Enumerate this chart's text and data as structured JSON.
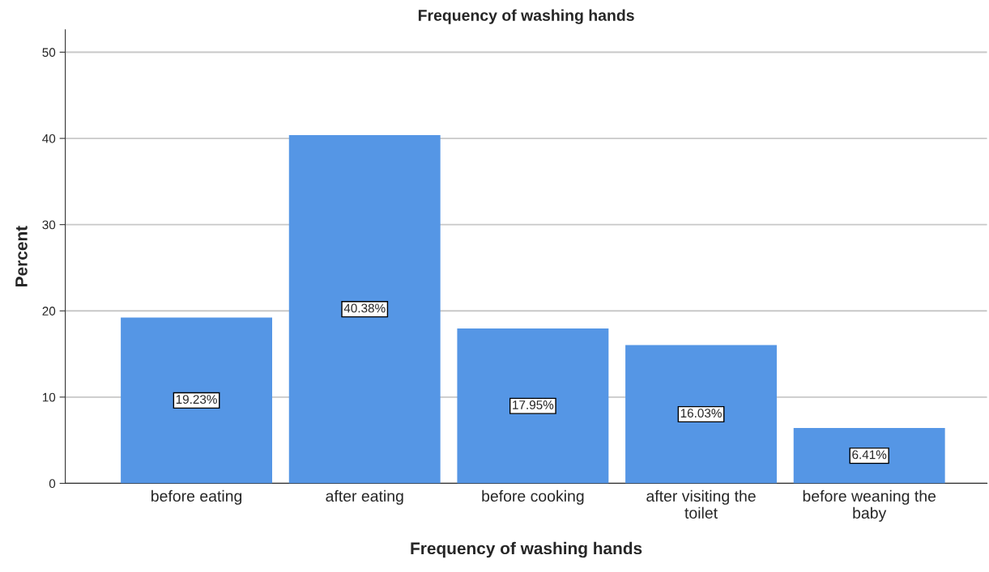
{
  "chart_data": {
    "type": "bar",
    "title": "Frequency of washing hands",
    "xlabel": "Frequency of washing hands",
    "ylabel": "Percent",
    "categories": [
      "before eating",
      "after eating",
      "before cooking",
      "after visiting the toilet",
      "before weaning the baby"
    ],
    "values": [
      19.23,
      40.38,
      17.95,
      16.03,
      6.41
    ],
    "value_labels": [
      "19.23%",
      "40.38%",
      "17.95%",
      "16.03%",
      "6.41%"
    ],
    "color": "#5596e5",
    "ylim": [
      0,
      52.6
    ],
    "yticks": [
      0,
      10,
      20,
      30,
      40,
      50
    ],
    "grid": "y",
    "legend": false
  }
}
